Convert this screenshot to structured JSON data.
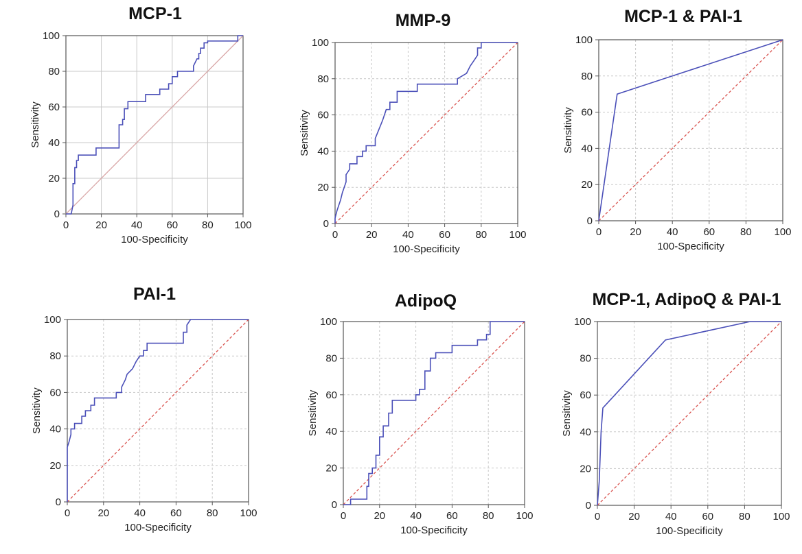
{
  "colors": {
    "roc_line": "#4a4fb8",
    "diagonal_solid": "#d9a7a7",
    "diagonal_dashed": "#d9534f",
    "grid": "#c8c8c8",
    "frame": "#555555"
  },
  "chart_data": [
    {
      "type": "line",
      "title": "MCP-1",
      "xlabel": "100-Specificity",
      "ylabel": "Sensitivity",
      "xlim": [
        0,
        100
      ],
      "ylim": [
        0,
        100
      ],
      "xticks": [
        "0",
        "20",
        "40",
        "60",
        "80",
        "100"
      ],
      "yticks": [
        "0",
        "20",
        "40",
        "60",
        "80",
        "100"
      ],
      "grid": "solid",
      "diagonal": "solid",
      "series": [
        {
          "x": [
            0,
            3,
            4,
            4,
            5,
            5,
            6,
            6,
            7,
            7,
            8,
            8,
            17,
            17,
            30,
            30,
            32,
            32,
            33,
            33,
            35,
            35,
            45,
            45,
            53,
            53,
            58,
            58,
            60,
            60,
            63,
            63,
            72,
            72,
            74,
            75,
            75,
            76,
            76,
            78,
            78,
            80,
            80,
            97,
            97,
            100
          ],
          "y": [
            0,
            0,
            5,
            17,
            17,
            26,
            26,
            30,
            30,
            33,
            33,
            33,
            33,
            37,
            37,
            50,
            50,
            53,
            53,
            59,
            59,
            63,
            63,
            67,
            67,
            70,
            70,
            73,
            73,
            77,
            77,
            80,
            80,
            83,
            87,
            87,
            90,
            90,
            93,
            93,
            96,
            96,
            97,
            97,
            100,
            100
          ]
        }
      ]
    },
    {
      "type": "line",
      "title": "MMP-9",
      "xlabel": "100-Specificity",
      "ylabel": "Sensitivity",
      "xlim": [
        0,
        100
      ],
      "ylim": [
        0,
        100
      ],
      "xticks": [
        "0",
        "20",
        "40",
        "60",
        "80",
        "100"
      ],
      "yticks": [
        "0",
        "20",
        "40",
        "60",
        "80",
        "100"
      ],
      "grid": "dashed",
      "diagonal": "dashed",
      "series": [
        {
          "x": [
            0,
            0,
            1,
            2,
            3,
            4,
            5,
            6,
            6,
            8,
            8,
            12,
            12,
            15,
            15,
            17,
            17,
            22,
            22,
            26,
            28,
            30,
            30,
            34,
            34,
            38,
            38,
            45,
            45,
            67,
            67,
            72,
            74,
            76,
            78,
            78,
            80,
            80,
            84,
            100
          ],
          "y": [
            0,
            3,
            7,
            10,
            13,
            17,
            20,
            23,
            27,
            30,
            33,
            33,
            37,
            37,
            40,
            40,
            43,
            43,
            47,
            57,
            63,
            63,
            67,
            67,
            73,
            73,
            73,
            73,
            77,
            77,
            80,
            83,
            87,
            90,
            93,
            97,
            97,
            100,
            100,
            100
          ]
        }
      ]
    },
    {
      "type": "line",
      "title": "MCP-1 & PAI-1",
      "xlabel": "100-Specificity",
      "ylabel": "Sensitivity",
      "xlim": [
        0,
        100
      ],
      "ylim": [
        0,
        100
      ],
      "xticks": [
        "0",
        "20",
        "40",
        "60",
        "80",
        "100"
      ],
      "yticks": [
        "0",
        "20",
        "40",
        "60",
        "80",
        "100"
      ],
      "grid": "dashed",
      "diagonal": "dashed",
      "series": [
        {
          "x": [
            0,
            10,
            40,
            70,
            100
          ],
          "y": [
            0,
            70,
            80,
            90,
            100
          ]
        }
      ]
    },
    {
      "type": "line",
      "title": "PAI-1",
      "xlabel": "100-Specificity",
      "ylabel": "Sensitivity",
      "xlim": [
        0,
        100
      ],
      "ylim": [
        0,
        100
      ],
      "xticks": [
        "0",
        "20",
        "40",
        "60",
        "80",
        "100"
      ],
      "yticks": [
        "0",
        "20",
        "40",
        "60",
        "80",
        "100"
      ],
      "grid": "dashed",
      "diagonal": "dashed",
      "series": [
        {
          "x": [
            0,
            0,
            1,
            2,
            2,
            4,
            4,
            8,
            8,
            10,
            10,
            13,
            13,
            15,
            15,
            20,
            20,
            27,
            27,
            30,
            30,
            32,
            33,
            36,
            38,
            40,
            42,
            42,
            44,
            44,
            64,
            64,
            66,
            66,
            68,
            100
          ],
          "y": [
            0,
            30,
            33,
            37,
            40,
            40,
            43,
            43,
            47,
            47,
            50,
            50,
            53,
            53,
            57,
            57,
            57,
            57,
            60,
            60,
            63,
            67,
            70,
            73,
            77,
            80,
            80,
            83,
            83,
            87,
            87,
            93,
            93,
            97,
            100,
            100
          ]
        }
      ]
    },
    {
      "type": "line",
      "title": "AdipoQ",
      "xlabel": "100-Specificity",
      "ylabel": "Sensitivity",
      "xlim": [
        0,
        100
      ],
      "ylim": [
        0,
        100
      ],
      "xticks": [
        "0",
        "20",
        "40",
        "60",
        "80",
        "100"
      ],
      "yticks": [
        "0",
        "20",
        "40",
        "60",
        "80",
        "100"
      ],
      "grid": "dashed",
      "diagonal": "dashed",
      "series": [
        {
          "x": [
            0,
            0,
            4,
            4,
            13,
            13,
            14,
            14,
            16,
            16,
            18,
            18,
            20,
            20,
            22,
            22,
            25,
            25,
            27,
            27,
            29,
            29,
            40,
            40,
            42,
            42,
            45,
            45,
            48,
            48,
            51,
            51,
            60,
            60,
            65,
            65,
            74,
            74,
            79,
            79,
            81,
            81,
            100
          ],
          "y": [
            0,
            0,
            0,
            3,
            3,
            10,
            10,
            17,
            17,
            20,
            20,
            27,
            27,
            37,
            37,
            43,
            43,
            50,
            50,
            57,
            57,
            57,
            57,
            60,
            60,
            63,
            63,
            73,
            73,
            80,
            80,
            83,
            83,
            87,
            87,
            87,
            87,
            90,
            90,
            93,
            93,
            100,
            100
          ]
        }
      ]
    },
    {
      "type": "line",
      "title": "MCP-1, AdipoQ & PAI-1",
      "xlabel": "100-Specificity",
      "ylabel": "Sensitivity",
      "xlim": [
        0,
        100
      ],
      "ylim": [
        0,
        100
      ],
      "xticks": [
        "0",
        "20",
        "40",
        "60",
        "80",
        "100"
      ],
      "yticks": [
        "0",
        "20",
        "40",
        "60",
        "80",
        "100"
      ],
      "grid": "dashed",
      "diagonal": "dashed",
      "series": [
        {
          "x": [
            0,
            1,
            2,
            3,
            37,
            83,
            100
          ],
          "y": [
            0,
            13,
            40,
            53,
            90,
            100,
            100
          ]
        }
      ]
    }
  ]
}
